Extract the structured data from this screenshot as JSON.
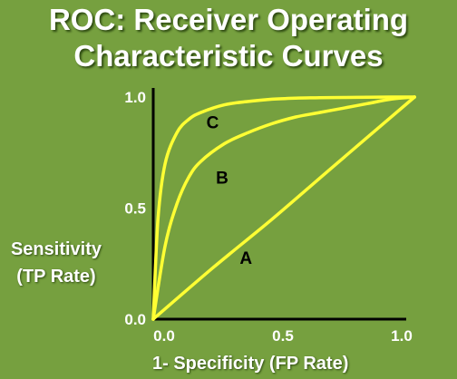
{
  "title_lines": [
    "ROC: Receiver Operating",
    "Characteristic Curves"
  ],
  "ylabel_lines": [
    "Sensitivity",
    "(TP Rate)"
  ],
  "xlabel": "1- Specificity (FP Rate)",
  "colors": {
    "background": "#76a03f",
    "curve": "#ffff33",
    "axis": "#000000",
    "text": "#ffffff"
  },
  "chart_data": {
    "type": "line",
    "title": "ROC: Receiver Operating Characteristic Curves",
    "xlabel": "1- Specificity (FP Rate)",
    "ylabel": "Sensitivity (TP Rate)",
    "xlim": [
      0,
      1
    ],
    "ylim": [
      0,
      1
    ],
    "grid": false,
    "x_ticks": [
      {
        "value": 0.0,
        "label": "0.0"
      },
      {
        "value": 0.5,
        "label": "0.5"
      },
      {
        "value": 1.0,
        "label": "1.0"
      }
    ],
    "y_ticks": [
      {
        "value": 0.0,
        "label": "0.0"
      },
      {
        "value": 0.5,
        "label": "0.5"
      },
      {
        "value": 1.0,
        "label": "1.0"
      }
    ],
    "series": [
      {
        "name": "A",
        "x": [
          0,
          0.25,
          0.5,
          0.75,
          1.1
        ],
        "y": [
          0,
          0.23,
          0.45,
          0.68,
          1.0
        ]
      },
      {
        "name": "B",
        "x": [
          0,
          0.05,
          0.1,
          0.15,
          0.2,
          0.3,
          0.4,
          0.5,
          0.6,
          0.7,
          0.8,
          0.9,
          1.0,
          1.1
        ],
        "y": [
          0,
          0.33,
          0.52,
          0.64,
          0.71,
          0.79,
          0.84,
          0.88,
          0.91,
          0.93,
          0.95,
          0.97,
          0.99,
          1.0
        ]
      },
      {
        "name": "C",
        "x": [
          0,
          0.02,
          0.05,
          0.1,
          0.15,
          0.2,
          0.3,
          0.4,
          0.5,
          0.6,
          0.7,
          0.8,
          0.9,
          1.0,
          1.1
        ],
        "y": [
          0,
          0.45,
          0.7,
          0.84,
          0.9,
          0.93,
          0.965,
          0.98,
          0.99,
          0.995,
          0.997,
          0.998,
          0.999,
          1.0,
          1.0
        ]
      }
    ],
    "annotations": [
      {
        "text": "A",
        "x": 0.39,
        "y": 0.25
      },
      {
        "text": "B",
        "x": 0.29,
        "y": 0.61
      },
      {
        "text": "C",
        "x": 0.25,
        "y": 0.86
      }
    ]
  }
}
